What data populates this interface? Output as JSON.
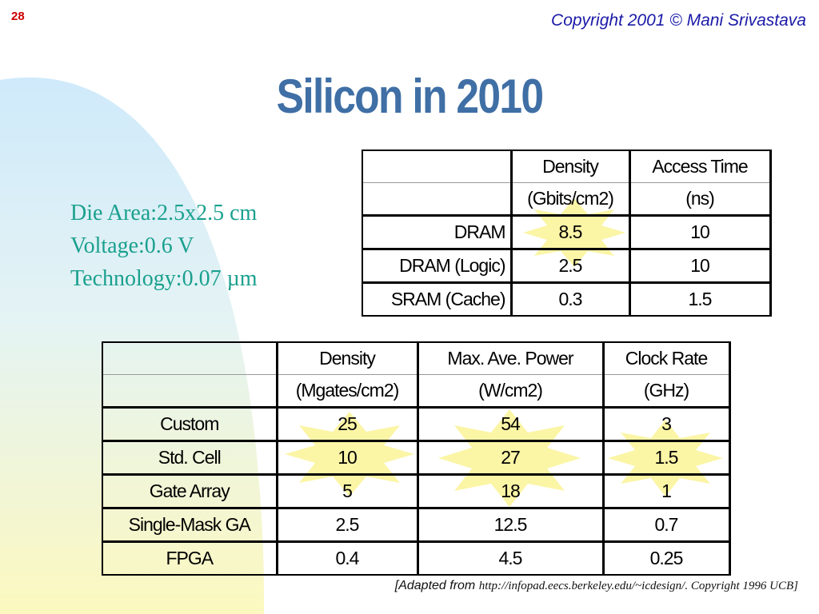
{
  "slide": {
    "number": "28",
    "copyright": "Copyright 2001 © Mani Srivastava",
    "title": "Silicon in 2010"
  },
  "specs": {
    "die_area": "Die Area:2.5x2.5 cm",
    "voltage": "Voltage:0.6 V",
    "technology": "Technology:0.07 µm"
  },
  "memory_table": {
    "headers": [
      [
        "",
        "Density",
        "Access Time"
      ],
      [
        "",
        "(Gbits/cm2)",
        "(ns)"
      ]
    ],
    "rows": [
      [
        "DRAM",
        "8.5",
        "10"
      ],
      [
        "DRAM (Logic)",
        "2.5",
        "10"
      ],
      [
        "SRAM (Cache)",
        "0.3",
        "1.5"
      ]
    ]
  },
  "logic_table": {
    "headers": [
      [
        "",
        "Density",
        "Max. Ave. Power",
        "Clock Rate"
      ],
      [
        "",
        "(Mgates/cm2)",
        "(W/cm2)",
        "(GHz)"
      ]
    ],
    "rows": [
      [
        "Custom",
        "25",
        "54",
        "3"
      ],
      [
        "Std. Cell",
        "10",
        "27",
        "1.5"
      ],
      [
        "Gate Array",
        "5",
        "18",
        "1"
      ],
      [
        "Single-Mask GA",
        "2.5",
        "12.5",
        "0.7"
      ],
      [
        "FPGA",
        "0.4",
        "4.5",
        "0.25"
      ]
    ]
  },
  "source": {
    "prefix": "[Adapted from",
    "rest": "http://infopad.eecs.berkeley.edu/~icdesign/. Copyright 1996 UCB]"
  },
  "colors": {
    "title": "#3f6fa5",
    "specs": "#1aa08e",
    "slide_number": "#cc0000",
    "copyright": "#1a1aa8",
    "starburst": "#fbf5a0",
    "background_arc_top": "#d3ecfb",
    "background_arc_bottom": "#fbf7c0"
  }
}
